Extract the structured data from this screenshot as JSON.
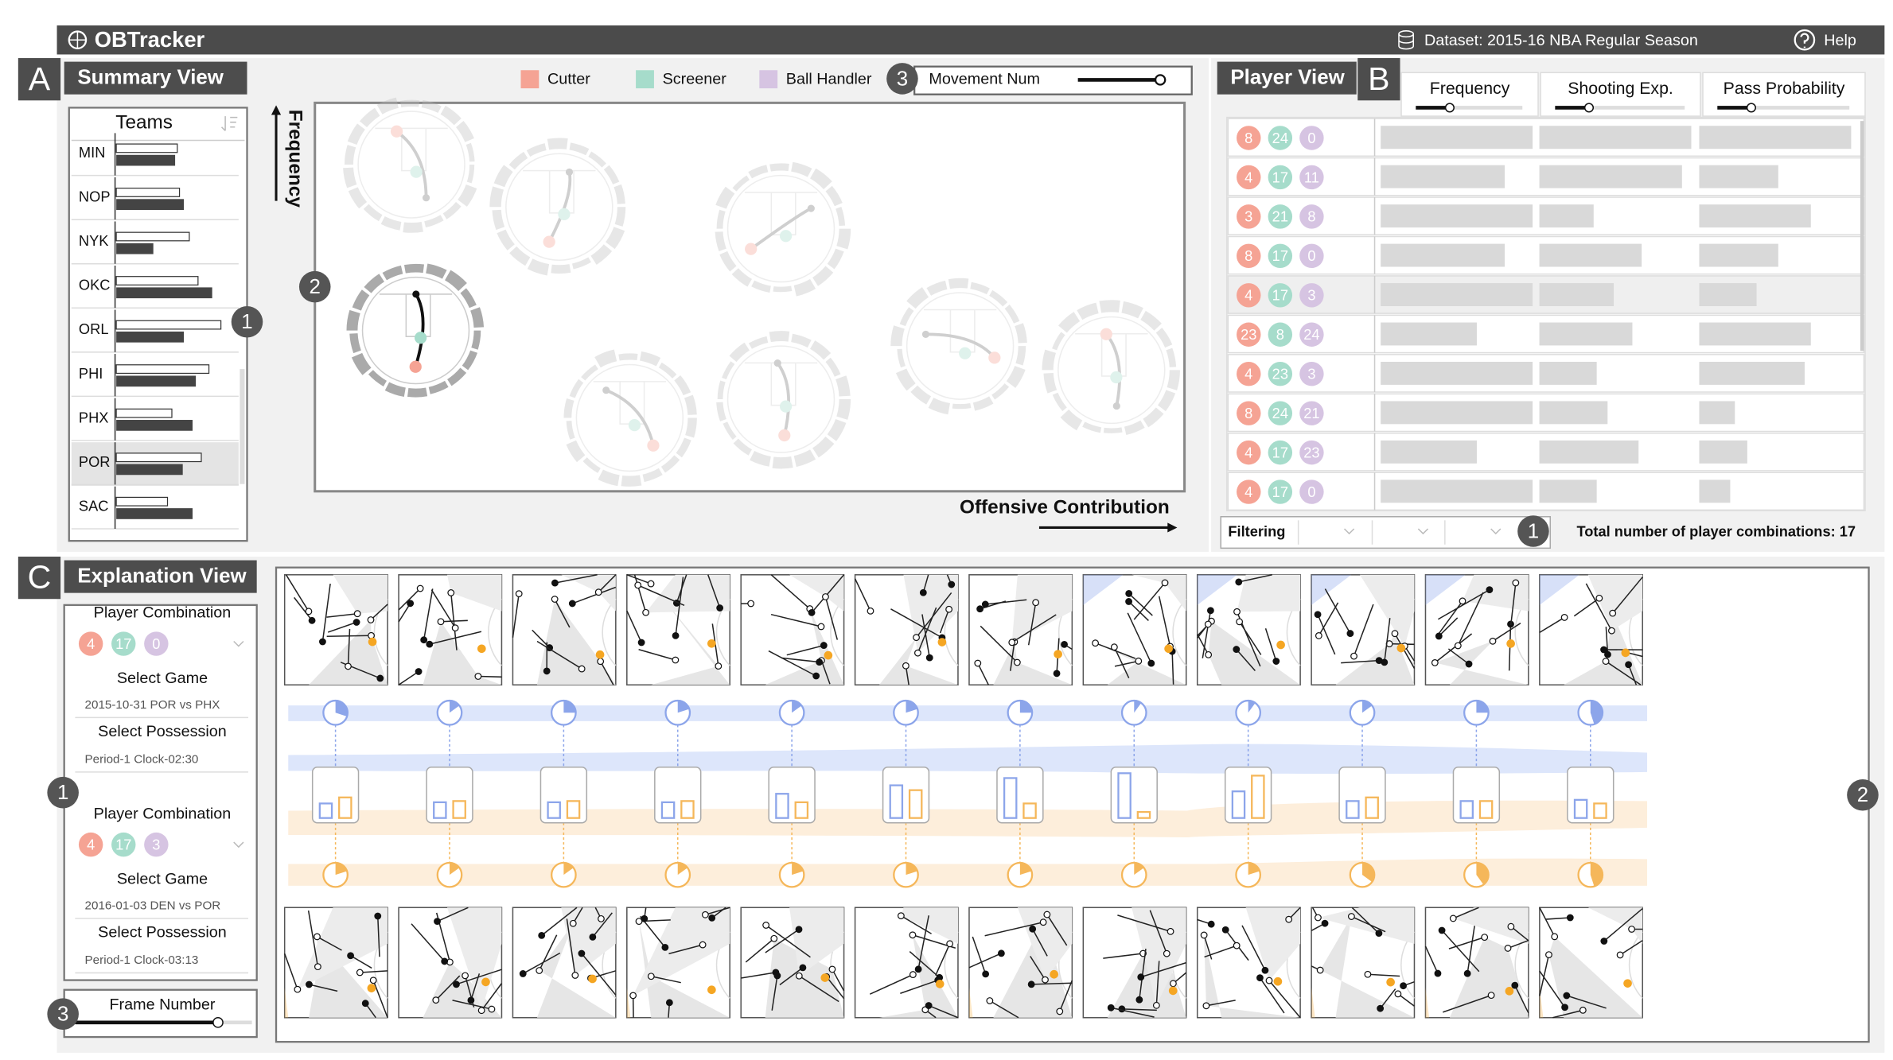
{
  "header": {
    "title": "OBTracker",
    "dataset": "Dataset: 2015-16 NBA Regular Season",
    "help": "Help"
  },
  "summary": {
    "letter": "A",
    "title": "Summary View",
    "legend": [
      {
        "name": "Cutter",
        "color": "#f5a394"
      },
      {
        "name": "Screener",
        "color": "#a6dccb"
      },
      {
        "name": "Ball Handler",
        "color": "#d6c4e2"
      }
    ],
    "movement_marker": "3",
    "movement_label": "Movement Num",
    "teams": {
      "header": "Teams",
      "marker": "1",
      "xlim": [
        0,
        100
      ],
      "rows": [
        {
          "name": "MIN",
          "light": 56,
          "dark": 54
        },
        {
          "name": "NOP",
          "light": 58,
          "dark": 62
        },
        {
          "name": "NYK",
          "light": 67,
          "dark": 34
        },
        {
          "name": "OKC",
          "light": 75,
          "dark": 88
        },
        {
          "name": "ORL",
          "light": 96,
          "dark": 62
        },
        {
          "name": "PHI",
          "light": 85,
          "dark": 73
        },
        {
          "name": "PHX",
          "light": 51,
          "dark": 70
        },
        {
          "name": "POR",
          "light": 78,
          "dark": 61
        },
        {
          "name": "SAC",
          "light": 47,
          "dark": 70
        }
      ]
    },
    "plot": {
      "marker": "2",
      "y_label": "Frequency",
      "x_label": "Offensive Contribution",
      "xlim": [
        0,
        100
      ],
      "ylim": [
        0,
        100
      ],
      "glyphs": [
        {
          "x": 11.1,
          "y": 84.1
        },
        {
          "x": 28.1,
          "y": 73.2
        },
        {
          "x": 53.6,
          "y": 67.6
        },
        {
          "x": 11.6,
          "y": 41.4
        },
        {
          "x": 36.2,
          "y": 18.9
        },
        {
          "x": 53.6,
          "y": 23.7
        },
        {
          "x": 74.2,
          "y": 37.4
        },
        {
          "x": 91.6,
          "y": 31.2
        }
      ]
    }
  },
  "player_view": {
    "letter": "B",
    "title": "Player View",
    "columns": [
      "Frequency",
      "Shooting Exp.",
      "Pass Probability"
    ],
    "xlim": [
      0,
      100
    ],
    "rows": [
      {
        "players": [
          8,
          24,
          0
        ],
        "values": [
          98,
          98,
          98
        ]
      },
      {
        "players": [
          4,
          17,
          11
        ],
        "values": [
          80,
          92,
          51
        ]
      },
      {
        "players": [
          3,
          21,
          8
        ],
        "values": [
          98,
          35,
          72
        ]
      },
      {
        "players": [
          8,
          17,
          0
        ],
        "values": [
          80,
          66,
          51
        ]
      },
      {
        "players": [
          4,
          17,
          3
        ],
        "values": [
          98,
          48,
          37
        ]
      },
      {
        "players": [
          23,
          8,
          24
        ],
        "values": [
          62,
          60,
          72
        ]
      },
      {
        "players": [
          4,
          23,
          3
        ],
        "values": [
          98,
          37,
          68
        ]
      },
      {
        "players": [
          8,
          24,
          21
        ],
        "values": [
          98,
          44,
          23
        ]
      },
      {
        "players": [
          4,
          17,
          23
        ],
        "values": [
          62,
          64,
          31
        ]
      },
      {
        "players": [
          4,
          17,
          0
        ],
        "values": [
          98,
          37,
          20
        ]
      }
    ],
    "filter_label": "Filtering",
    "filter_marker": "1",
    "total": "Total number of player combinations: 17"
  },
  "explanation": {
    "letter": "C",
    "title": "Explanation View",
    "controls_marker": "1",
    "view_marker": "2",
    "frame_marker": "3",
    "frame_label": "Frame Number",
    "combos": [
      {
        "label": "Player Combination",
        "players": [
          4,
          17,
          0
        ],
        "game_label": "Select Game",
        "game": "2015-10-31 POR vs PHX",
        "possession_label": "Select Possession",
        "possession": "Period-1 Clock-02:30"
      },
      {
        "label": "Player Combination",
        "players": [
          4,
          17,
          3
        ],
        "game_label": "Select Game",
        "game": "2016-01-03 DEN vs POR",
        "possession_label": "Select Possession",
        "possession": "Period-1 Clock-03:13"
      }
    ],
    "bar_max": 40,
    "top_pie": [
      0.3,
      0.15,
      0.25,
      0.2,
      0.15,
      0.2,
      0.25,
      0.1,
      0.1,
      0.15,
      0.25,
      0.45
    ],
    "blue_bar": [
      12,
      13,
      13,
      13,
      20,
      27,
      33,
      37,
      22,
      14,
      14,
      15
    ],
    "orange_bar": [
      17,
      14,
      14,
      14,
      13,
      23,
      12,
      5,
      35,
      17,
      14,
      12
    ],
    "bottom_pie": [
      0.2,
      0.15,
      0.15,
      0.15,
      0.2,
      0.2,
      0.2,
      0.15,
      0.2,
      0.35,
      0.4,
      0.45
    ]
  }
}
